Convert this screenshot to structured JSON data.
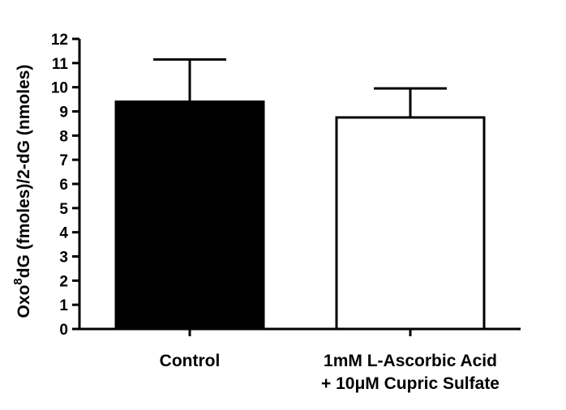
{
  "chart_data": {
    "type": "bar",
    "categories": [
      [
        "Control"
      ],
      [
        "1mM L-Ascorbic Acid",
        "+ 10μM Cupric Sulfate"
      ]
    ],
    "values": [
      9.4,
      8.75
    ],
    "errors": [
      1.75,
      1.2
    ],
    "bar_colors": [
      "#000000",
      "#ffffff"
    ],
    "ylabel_parts": {
      "pre": "Oxo",
      "sup": "8",
      "post": "dG (fmoles)/2-dG (nmoles)"
    },
    "ylim": [
      0,
      12
    ],
    "yticks": [
      0,
      1,
      2,
      3,
      4,
      5,
      6,
      7,
      8,
      9,
      10,
      11,
      12
    ],
    "grid": false
  }
}
